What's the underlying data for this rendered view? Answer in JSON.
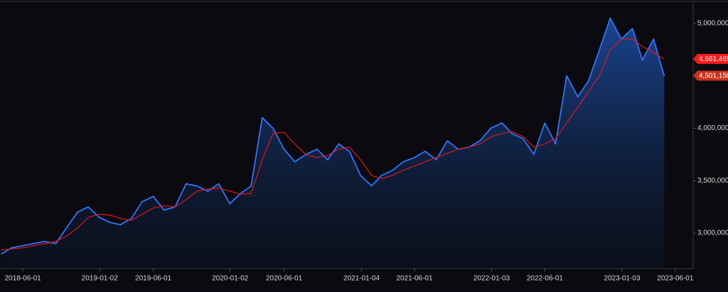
{
  "chart_data": {
    "type": "line",
    "x": [
      "2018-04-01",
      "2018-05-01",
      "2018-06-01",
      "2018-07-01",
      "2018-08-01",
      "2018-09-01",
      "2018-10-01",
      "2018-11-01",
      "2018-12-01",
      "2019-01-01",
      "2019-02-01",
      "2019-03-01",
      "2019-04-01",
      "2019-05-01",
      "2019-06-01",
      "2019-07-01",
      "2019-08-01",
      "2019-09-01",
      "2019-10-01",
      "2019-11-01",
      "2019-12-01",
      "2020-01-01",
      "2020-02-01",
      "2020-03-01",
      "2020-04-01",
      "2020-05-01",
      "2020-06-01",
      "2020-07-01",
      "2020-08-01",
      "2020-09-01",
      "2020-10-01",
      "2020-11-01",
      "2020-12-01",
      "2021-01-01",
      "2021-02-01",
      "2021-03-01",
      "2021-04-01",
      "2021-05-01",
      "2021-06-01",
      "2021-07-01",
      "2021-08-01",
      "2021-09-01",
      "2021-10-01",
      "2021-11-01",
      "2021-12-01",
      "2022-01-01",
      "2022-02-01",
      "2022-03-01",
      "2022-04-01",
      "2022-05-01",
      "2022-06-01",
      "2022-07-01",
      "2022-08-01",
      "2022-09-01",
      "2022-10-01",
      "2022-11-01",
      "2022-12-01",
      "2023-01-01",
      "2023-02-01",
      "2023-03-01",
      "2023-04-01",
      "2023-05-01"
    ],
    "series": [
      {
        "color": "#2f74ff",
        "fill": true,
        "values": [
          2800000,
          2860000,
          2880000,
          2900000,
          2920000,
          2900000,
          3050000,
          3200000,
          3250000,
          3150000,
          3100000,
          3080000,
          3140000,
          3300000,
          3350000,
          3220000,
          3250000,
          3470000,
          3450000,
          3400000,
          3470000,
          3280000,
          3380000,
          3450000,
          4100000,
          4000000,
          3800000,
          3680000,
          3750000,
          3800000,
          3700000,
          3850000,
          3780000,
          3550000,
          3450000,
          3550000,
          3600000,
          3680000,
          3720000,
          3780000,
          3700000,
          3880000,
          3800000,
          3820000,
          3880000,
          4000000,
          4050000,
          3950000,
          3900000,
          3750000,
          4050000,
          3850000,
          4500000,
          4300000,
          4450000,
          4750000,
          5050000,
          4850000,
          4950000,
          4650000,
          4850000,
          4500000
        ]
      },
      {
        "color": "#e0161b",
        "fill": false,
        "values": [
          2840000,
          2850000,
          2860000,
          2880000,
          2900000,
          2920000,
          2970000,
          3050000,
          3150000,
          3180000,
          3170000,
          3140000,
          3120000,
          3180000,
          3240000,
          3260000,
          3250000,
          3320000,
          3400000,
          3420000,
          3430000,
          3400000,
          3370000,
          3380000,
          3700000,
          3950000,
          3960000,
          3850000,
          3750000,
          3720000,
          3740000,
          3800000,
          3820000,
          3700000,
          3550000,
          3520000,
          3550000,
          3600000,
          3640000,
          3680000,
          3720000,
          3760000,
          3800000,
          3820000,
          3850000,
          3920000,
          3950000,
          3970000,
          3920000,
          3820000,
          3850000,
          3900000,
          4050000,
          4200000,
          4350000,
          4500000,
          4750000,
          4850000,
          4850000,
          4780000,
          4720000,
          4660000
        ]
      }
    ],
    "xlim": [
      "2018-03-29",
      "2023-07-21"
    ],
    "xticks": [
      "2018-06-01",
      "2019-01-02",
      "2019-06-01",
      "2020-01-02",
      "2020-06-01",
      "2021-01-04",
      "2021-06-01",
      "2022-01-03",
      "2022-06-01",
      "2023-01-03",
      "2023-06-01"
    ],
    "ylim": [
      2662000,
      5189000
    ],
    "yticks": [
      {
        "value": 3000000,
        "label": "3,000,000"
      },
      {
        "value": 3500000,
        "label": "3,500,000"
      },
      {
        "value": 4000000,
        "label": "4,000,000"
      },
      {
        "value": 5000000,
        "label": "5,000,000"
      }
    ],
    "price_labels": [
      {
        "value": 4661465,
        "label": "4,661,465",
        "color": "#ff1a1a"
      },
      {
        "value": 4501150,
        "label": "4,501,150",
        "color": "#c8321c"
      }
    ]
  }
}
